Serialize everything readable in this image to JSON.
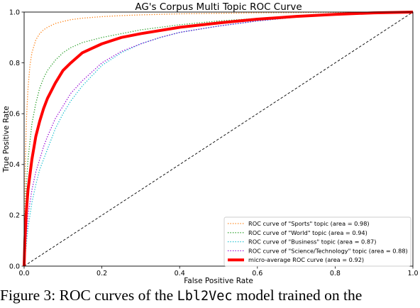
{
  "chart_data": {
    "type": "line",
    "title": "AG's Corpus Multi Topic ROC Curve",
    "xlabel": "False Positive Rate",
    "ylabel": "True Positive Rate",
    "xlim": [
      0.0,
      1.0
    ],
    "ylim": [
      0.0,
      1.0
    ],
    "xticks": [
      "0.0",
      "0.2",
      "0.4",
      "0.6",
      "0.8",
      "1.0"
    ],
    "yticks": [
      "0.0",
      "0.2",
      "0.4",
      "0.6",
      "0.8",
      "1.0"
    ],
    "grid": false,
    "legend_position": "lower-right",
    "series": [
      {
        "name": "ROC curve of \"Sports\" topic (area = 0.98)",
        "color": "#ff7f0e",
        "style": "dotted",
        "width": 1.3,
        "x": [
          0,
          0.003,
          0.006,
          0.01,
          0.015,
          0.02,
          0.03,
          0.04,
          0.05,
          0.06,
          0.08,
          0.1,
          0.12,
          0.15,
          0.2,
          0.25,
          0.3,
          0.4,
          0.5,
          0.6,
          0.7,
          0.8,
          0.9,
          1.0
        ],
        "y": [
          0,
          0.4,
          0.58,
          0.7,
          0.79,
          0.84,
          0.89,
          0.915,
          0.93,
          0.94,
          0.955,
          0.963,
          0.97,
          0.976,
          0.982,
          0.986,
          0.989,
          0.993,
          0.995,
          0.997,
          0.998,
          0.999,
          0.9995,
          1.0
        ]
      },
      {
        "name": "ROC curve of \"World\" topic (area = 0.94)",
        "color": "#2ca02c",
        "style": "dotted",
        "width": 1.3,
        "x": [
          0,
          0.005,
          0.01,
          0.02,
          0.03,
          0.04,
          0.05,
          0.06,
          0.08,
          0.1,
          0.12,
          0.15,
          0.2,
          0.25,
          0.3,
          0.4,
          0.5,
          0.6,
          0.7,
          0.8,
          0.9,
          1.0
        ],
        "y": [
          0,
          0.3,
          0.42,
          0.56,
          0.64,
          0.7,
          0.74,
          0.77,
          0.81,
          0.84,
          0.86,
          0.88,
          0.9,
          0.915,
          0.93,
          0.95,
          0.965,
          0.975,
          0.985,
          0.99,
          0.995,
          1.0
        ]
      },
      {
        "name": "ROC curve of \"Business\" topic (area = 0.87)",
        "color": "#17becf",
        "style": "dotted",
        "width": 1.3,
        "x": [
          0,
          0.01,
          0.02,
          0.03,
          0.04,
          0.05,
          0.06,
          0.08,
          0.1,
          0.12,
          0.15,
          0.2,
          0.25,
          0.3,
          0.35,
          0.4,
          0.5,
          0.6,
          0.7,
          0.8,
          0.9,
          1.0
        ],
        "y": [
          0,
          0.15,
          0.25,
          0.32,
          0.38,
          0.42,
          0.46,
          0.54,
          0.6,
          0.65,
          0.71,
          0.79,
          0.84,
          0.875,
          0.9,
          0.92,
          0.945,
          0.965,
          0.98,
          0.99,
          0.997,
          1.0
        ]
      },
      {
        "name": "ROC curve of \"Science/Technology\" topic (area = 0.88)",
        "color": "#9400d3",
        "style": "dotted",
        "width": 1.3,
        "x": [
          0,
          0.01,
          0.02,
          0.03,
          0.04,
          0.05,
          0.06,
          0.08,
          0.1,
          0.12,
          0.15,
          0.2,
          0.25,
          0.3,
          0.35,
          0.4,
          0.5,
          0.6,
          0.7,
          0.8,
          0.9,
          1.0
        ],
        "y": [
          0,
          0.2,
          0.3,
          0.37,
          0.42,
          0.47,
          0.51,
          0.58,
          0.63,
          0.68,
          0.73,
          0.8,
          0.845,
          0.875,
          0.9,
          0.92,
          0.945,
          0.965,
          0.98,
          0.99,
          0.997,
          1.0
        ]
      },
      {
        "name": "micro-average ROC curve (area = 0.92)",
        "color": "#ff0000",
        "style": "solid",
        "width": 4,
        "x": [
          0,
          0.002,
          0.005,
          0.01,
          0.02,
          0.03,
          0.04,
          0.05,
          0.06,
          0.08,
          0.1,
          0.12,
          0.15,
          0.2,
          0.25,
          0.3,
          0.4,
          0.5,
          0.6,
          0.7,
          0.8,
          0.9,
          1.0
        ],
        "y": [
          0,
          0.1,
          0.2,
          0.3,
          0.42,
          0.51,
          0.57,
          0.62,
          0.66,
          0.72,
          0.77,
          0.8,
          0.84,
          0.875,
          0.9,
          0.915,
          0.94,
          0.957,
          0.972,
          0.983,
          0.991,
          0.997,
          1.0
        ]
      },
      {
        "name": "",
        "color": "#000000",
        "style": "dashed",
        "width": 0.9,
        "x": [
          0,
          1
        ],
        "y": [
          0,
          1
        ]
      }
    ]
  },
  "caption": {
    "prefix": "Figure 3:  ROC curves of the ",
    "code": "Lbl2Vec",
    "suffix": " model trained on the"
  }
}
